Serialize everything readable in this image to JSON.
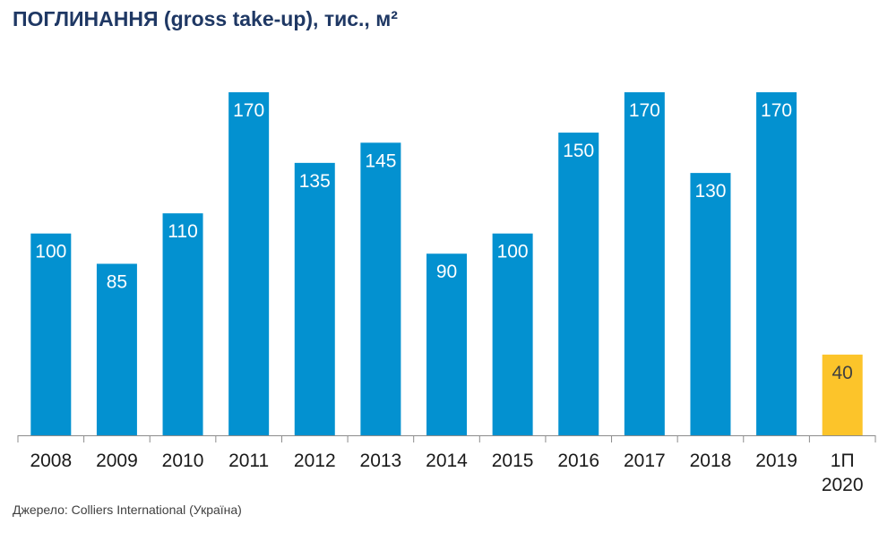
{
  "chart_data": {
    "type": "bar",
    "title": "ПОГЛИНАННЯ (gross take-up), тис., м²",
    "source": "Джерело: Colliers International (Україна)",
    "categories": [
      "2008",
      "2009",
      "2010",
      "2011",
      "2012",
      "2013",
      "2014",
      "2015",
      "2016",
      "2017",
      "2018",
      "2019",
      "1П 2020"
    ],
    "values": [
      100,
      85,
      110,
      170,
      135,
      145,
      90,
      100,
      150,
      170,
      130,
      170,
      40
    ],
    "ylim": [
      0,
      170
    ],
    "grid": false,
    "legend": "none",
    "colors": {
      "default": "#0391d0",
      "highlight": "#fcc42a",
      "label_on_default": "#ffffff",
      "label_on_highlight": "#404040"
    },
    "highlight_index": 12
  }
}
